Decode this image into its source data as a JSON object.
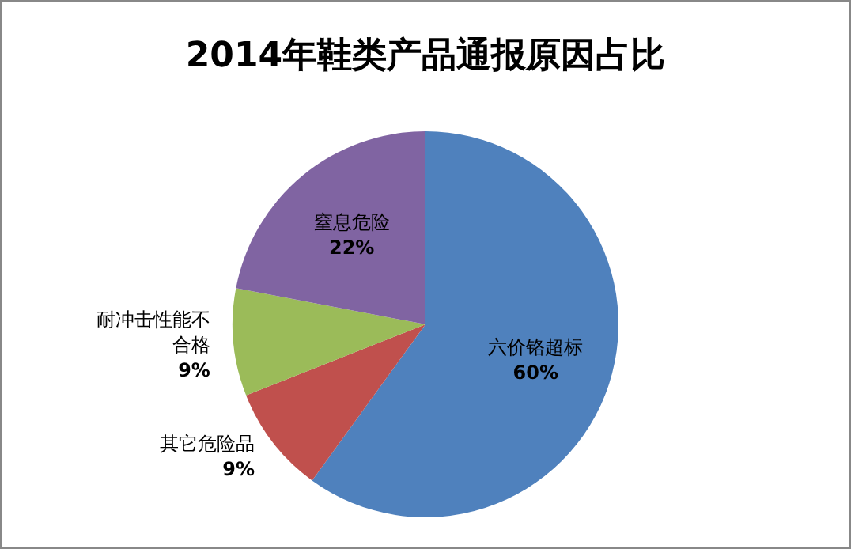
{
  "chart_data": {
    "type": "pie",
    "title": "2014年鞋类产品通报原因占比",
    "categories": [
      "六价铬超标",
      "其它危险品",
      "耐冲击性能不合格",
      "窒息危险"
    ],
    "values": [
      60,
      9,
      9,
      22
    ],
    "colors": [
      "#4f81bd",
      "#c0504d",
      "#9bbb59",
      "#8064a2"
    ],
    "value_labels": [
      "60%",
      "9%",
      "9%",
      "22%"
    ],
    "legend": false
  }
}
